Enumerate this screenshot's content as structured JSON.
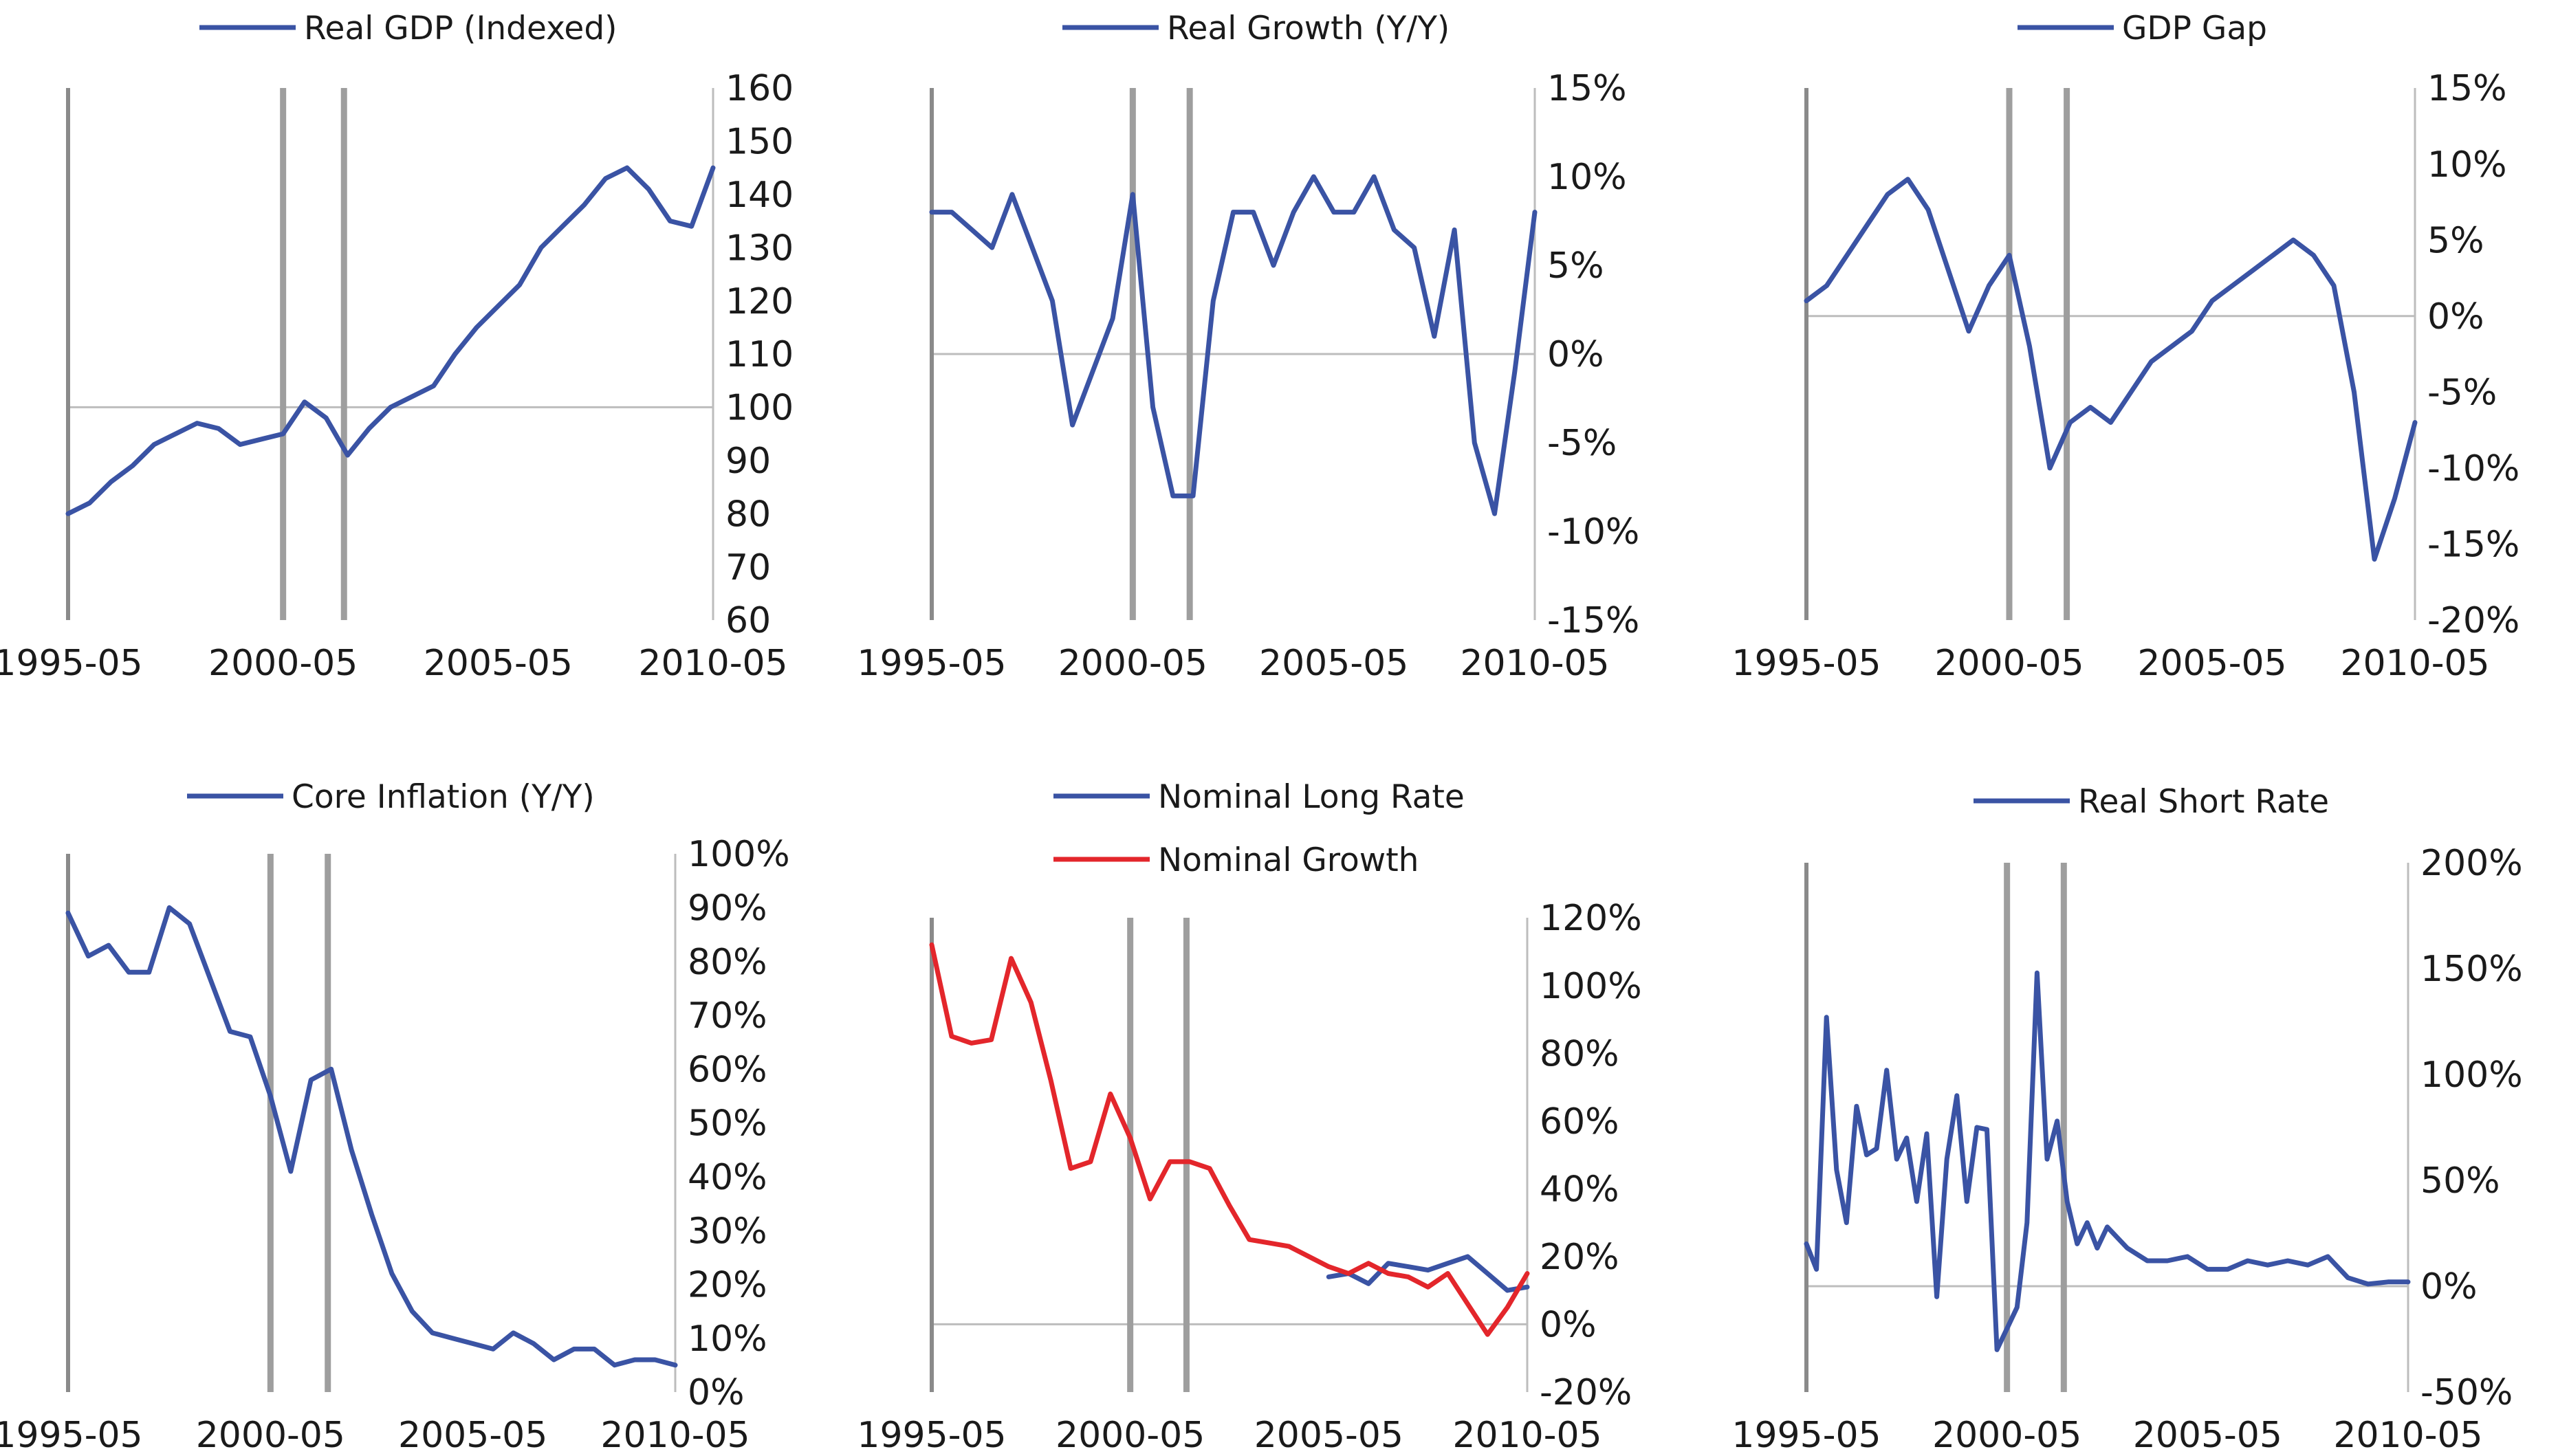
{
  "chart_data": [
    {
      "type": "line",
      "series": [
        {
          "name": "Real GDP (Indexed)",
          "color": "#3a53a4",
          "x": [
            "1995-05",
            "1995-11",
            "1996-05",
            "1996-11",
            "1997-05",
            "1997-11",
            "1998-05",
            "1998-11",
            "1999-05",
            "1999-11",
            "2000-05",
            "2000-11",
            "2001-05",
            "2001-11",
            "2002-05",
            "2002-11",
            "2003-05",
            "2003-11",
            "2004-05",
            "2004-11",
            "2005-05",
            "2005-11",
            "2006-05",
            "2006-11",
            "2007-05",
            "2007-11",
            "2008-05",
            "2008-11",
            "2009-05",
            "2009-11",
            "2010-05"
          ],
          "values": [
            80,
            82,
            86,
            89,
            93,
            95,
            97,
            96,
            93,
            94,
            95,
            101,
            98,
            91,
            96,
            100,
            102,
            104,
            110,
            115,
            119,
            123,
            130,
            134,
            138,
            143,
            145,
            141,
            135,
            134,
            145
          ]
        }
      ],
      "x_ticks": [
        "1995-05",
        "2000-05",
        "2005-05",
        "2010-05"
      ],
      "y_ticks": [
        "160",
        "150",
        "140",
        "130",
        "120",
        "110",
        "100",
        "90",
        "80",
        "70",
        "60"
      ],
      "ylim": [
        60,
        160
      ],
      "ref_line": 100,
      "recession_x": [
        "2000-05",
        "2001-10"
      ],
      "legend": "top"
    },
    {
      "type": "line",
      "series": [
        {
          "name": "Real Growth (Y/Y)",
          "color": "#3a53a4",
          "x": [
            "1995-05",
            "1995-11",
            "1996-05",
            "1996-11",
            "1997-05",
            "1997-11",
            "1998-05",
            "1998-11",
            "1999-05",
            "1999-11",
            "2000-05",
            "2000-11",
            "2001-05",
            "2001-11",
            "2002-05",
            "2002-11",
            "2003-05",
            "2003-11",
            "2004-05",
            "2004-11",
            "2005-05",
            "2005-11",
            "2006-05",
            "2006-11",
            "2007-05",
            "2007-11",
            "2008-05",
            "2008-11",
            "2009-05",
            "2009-11",
            "2010-05"
          ],
          "values": [
            8,
            8,
            7,
            6,
            9,
            6,
            3,
            -4,
            -1,
            2,
            9,
            -3,
            -8,
            -8,
            3,
            8,
            8,
            5,
            8,
            10,
            8,
            8,
            10,
            7,
            6,
            1,
            7,
            -5,
            -9,
            -1,
            8
          ]
        }
      ],
      "x_ticks": [
        "1995-05",
        "2000-05",
        "2005-05",
        "2010-05"
      ],
      "y_ticks": [
        "15%",
        "10%",
        "5%",
        "0%",
        "-5%",
        "-10%",
        "-15%"
      ],
      "ylim": [
        -15,
        15
      ],
      "ref_line": 0,
      "recession_x": [
        "2000-05",
        "2001-10"
      ],
      "legend": "top"
    },
    {
      "type": "line",
      "series": [
        {
          "name": "GDP Gap",
          "color": "#3a53a4",
          "x": [
            "1995-05",
            "1995-11",
            "1996-05",
            "1996-11",
            "1997-05",
            "1997-11",
            "1998-05",
            "1998-11",
            "1999-05",
            "1999-11",
            "2000-05",
            "2000-11",
            "2001-05",
            "2001-11",
            "2002-05",
            "2002-11",
            "2003-05",
            "2003-11",
            "2004-05",
            "2004-11",
            "2005-05",
            "2005-11",
            "2006-05",
            "2006-11",
            "2007-05",
            "2007-11",
            "2008-05",
            "2008-11",
            "2009-05",
            "2009-11",
            "2010-05"
          ],
          "values": [
            1,
            2,
            4,
            6,
            8,
            9,
            7,
            3,
            -1,
            2,
            4,
            -2,
            -10,
            -7,
            -6,
            -7,
            -5,
            -3,
            -2,
            -1,
            1,
            2,
            3,
            4,
            5,
            4,
            2,
            -5,
            -16,
            -12,
            -7
          ]
        }
      ],
      "x_ticks": [
        "1995-05",
        "2000-05",
        "2005-05",
        "2010-05"
      ],
      "y_ticks": [
        "15%",
        "10%",
        "5%",
        "0%",
        "-5%",
        "-10%",
        "-15%",
        "-20%"
      ],
      "ylim": [
        -20,
        15
      ],
      "ref_line": 0,
      "recession_x": [
        "2000-05",
        "2001-10"
      ],
      "legend": "top"
    },
    {
      "type": "line",
      "series": [
        {
          "name": "Core Inflation (Y/Y)",
          "color": "#3a53a4",
          "x": [
            "1995-05",
            "1995-11",
            "1996-05",
            "1996-11",
            "1997-05",
            "1997-11",
            "1998-05",
            "1998-11",
            "1999-05",
            "1999-11",
            "2000-05",
            "2000-11",
            "2001-05",
            "2001-11",
            "2002-05",
            "2002-11",
            "2003-05",
            "2003-11",
            "2004-05",
            "2004-11",
            "2005-05",
            "2005-11",
            "2006-05",
            "2006-11",
            "2007-05",
            "2007-11",
            "2008-05",
            "2008-11",
            "2009-05",
            "2009-11",
            "2010-05"
          ],
          "values": [
            89,
            81,
            83,
            78,
            78,
            90,
            87,
            77,
            67,
            66,
            55,
            41,
            58,
            60,
            45,
            33,
            22,
            15,
            11,
            10,
            9,
            8,
            11,
            9,
            6,
            8,
            8,
            5,
            6,
            6,
            5
          ]
        }
      ],
      "x_ticks": [
        "1995-05",
        "2000-05",
        "2005-05",
        "2010-05"
      ],
      "y_ticks": [
        "100%",
        "90%",
        "80%",
        "70%",
        "60%",
        "50%",
        "40%",
        "30%",
        "20%",
        "10%",
        "0%"
      ],
      "ylim": [
        0,
        100
      ],
      "ref_line": null,
      "recession_x": [
        "2000-05",
        "2001-10"
      ],
      "legend": "top"
    },
    {
      "type": "line",
      "series": [
        {
          "name": "Nominal Long Rate",
          "color": "#3a53a4",
          "x": [
            "2005-05",
            "2005-11",
            "2006-05",
            "2006-11",
            "2007-05",
            "2007-11",
            "2008-05",
            "2008-11",
            "2009-05",
            "2009-11",
            "2010-05"
          ],
          "values": [
            14,
            15,
            12,
            18,
            17,
            16,
            18,
            20,
            15,
            10,
            11
          ]
        },
        {
          "name": "Nominal Growth",
          "color": "#e3262b",
          "x": [
            "1995-05",
            "1995-11",
            "1996-05",
            "1996-11",
            "1997-05",
            "1997-11",
            "1998-05",
            "1998-11",
            "1999-05",
            "1999-11",
            "2000-05",
            "2000-11",
            "2001-05",
            "2001-11",
            "2002-05",
            "2002-11",
            "2003-05",
            "2003-11",
            "2004-05",
            "2004-11",
            "2005-05",
            "2005-11",
            "2006-05",
            "2006-11",
            "2007-05",
            "2007-11",
            "2008-05",
            "2008-11",
            "2009-05",
            "2009-11",
            "2010-05"
          ],
          "values": [
            112,
            85,
            83,
            84,
            108,
            95,
            72,
            46,
            48,
            68,
            55,
            37,
            48,
            48,
            46,
            35,
            25,
            24,
            23,
            20,
            17,
            15,
            18,
            15,
            14,
            11,
            15,
            6,
            -3,
            5,
            15
          ]
        }
      ],
      "x_ticks": [
        "1995-05",
        "2000-05",
        "2005-05",
        "2010-05"
      ],
      "y_ticks": [
        "120%",
        "100%",
        "80%",
        "60%",
        "40%",
        "20%",
        "0%",
        "-20%"
      ],
      "ylim": [
        -20,
        120
      ],
      "ref_line": 0,
      "recession_x": [
        "2000-05",
        "2001-10"
      ],
      "legend": "top"
    },
    {
      "type": "line",
      "series": [
        {
          "name": "Real Short Rate",
          "color": "#3a53a4",
          "x": [
            "1995-05",
            "1995-08",
            "1995-11",
            "1996-02",
            "1996-05",
            "1996-08",
            "1996-11",
            "1997-02",
            "1997-05",
            "1997-08",
            "1997-11",
            "1998-02",
            "1998-05",
            "1998-08",
            "1998-11",
            "1999-02",
            "1999-05",
            "1999-08",
            "1999-11",
            "2000-02",
            "2000-05",
            "2000-08",
            "2000-11",
            "2001-02",
            "2001-05",
            "2001-08",
            "2001-11",
            "2002-02",
            "2002-05",
            "2002-08",
            "2002-11",
            "2003-05",
            "2003-11",
            "2004-05",
            "2004-11",
            "2005-05",
            "2005-11",
            "2006-05",
            "2006-11",
            "2007-05",
            "2007-11",
            "2008-05",
            "2008-11",
            "2009-05",
            "2009-11",
            "2010-05"
          ],
          "values": [
            20,
            8,
            127,
            55,
            30,
            85,
            62,
            65,
            102,
            60,
            70,
            40,
            72,
            -5,
            60,
            90,
            40,
            75,
            74,
            -30,
            -20,
            -10,
            30,
            148,
            60,
            78,
            40,
            20,
            30,
            18,
            28,
            18,
            12,
            12,
            14,
            8,
            8,
            12,
            10,
            12,
            10,
            14,
            4,
            1,
            2,
            2
          ]
        }
      ],
      "x_ticks": [
        "1995-05",
        "2000-05",
        "2005-05",
        "2010-05"
      ],
      "y_ticks": [
        "200%",
        "150%",
        "100%",
        "50%",
        "0%",
        "-50%"
      ],
      "ylim": [
        -50,
        200
      ],
      "ref_line": 0,
      "recession_x": [
        "2000-05",
        "2001-10"
      ],
      "legend": "top"
    }
  ]
}
